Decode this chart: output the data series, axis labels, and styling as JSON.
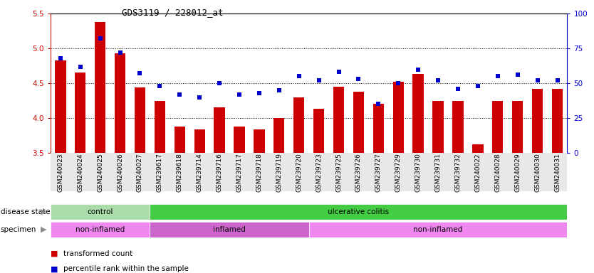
{
  "title": "GDS3119 / 228012_at",
  "samples": [
    "GSM240023",
    "GSM240024",
    "GSM240025",
    "GSM240026",
    "GSM240027",
    "GSM239617",
    "GSM239618",
    "GSM239714",
    "GSM239716",
    "GSM239717",
    "GSM239718",
    "GSM239719",
    "GSM239720",
    "GSM239723",
    "GSM239725",
    "GSM239726",
    "GSM239727",
    "GSM239729",
    "GSM239730",
    "GSM239731",
    "GSM239732",
    "GSM240022",
    "GSM240028",
    "GSM240029",
    "GSM240030",
    "GSM240031"
  ],
  "bar_values": [
    4.83,
    4.65,
    5.38,
    4.93,
    4.44,
    4.25,
    3.88,
    3.84,
    4.15,
    3.88,
    3.84,
    4.0,
    4.3,
    4.13,
    4.45,
    4.38,
    4.2,
    4.52,
    4.63,
    4.25,
    4.25,
    3.62,
    4.25,
    4.25,
    4.42,
    4.42
  ],
  "dot_values": [
    68,
    62,
    82,
    72,
    57,
    48,
    42,
    40,
    50,
    42,
    43,
    45,
    55,
    52,
    58,
    53,
    35,
    50,
    60,
    52,
    46,
    48,
    55,
    56,
    52,
    52
  ],
  "ylim_left": [
    3.5,
    5.5
  ],
  "ylim_right": [
    0,
    100
  ],
  "yticks_left": [
    3.5,
    4.0,
    4.5,
    5.0,
    5.5
  ],
  "yticks_right": [
    0,
    25,
    50,
    75,
    100
  ],
  "bar_color": "#cc0000",
  "dot_color": "#0000cc",
  "disease_state_groups": [
    {
      "label": "control",
      "start": 0,
      "end": 5,
      "color": "#aaddaa"
    },
    {
      "label": "ulcerative colitis",
      "start": 5,
      "end": 26,
      "color": "#44cc44"
    }
  ],
  "specimen_groups": [
    {
      "label": "non-inflamed",
      "start": 0,
      "end": 5,
      "color": "#ee88ee"
    },
    {
      "label": "inflamed",
      "start": 5,
      "end": 13,
      "color": "#cc66cc"
    },
    {
      "label": "non-inflamed",
      "start": 13,
      "end": 26,
      "color": "#ee88ee"
    }
  ],
  "legend_items": [
    {
      "label": "transformed count",
      "color": "#cc0000"
    },
    {
      "label": "percentile rank within the sample",
      "color": "#0000cc"
    }
  ],
  "left_label_color": "#cc0000",
  "right_label_color": "#0000cc"
}
